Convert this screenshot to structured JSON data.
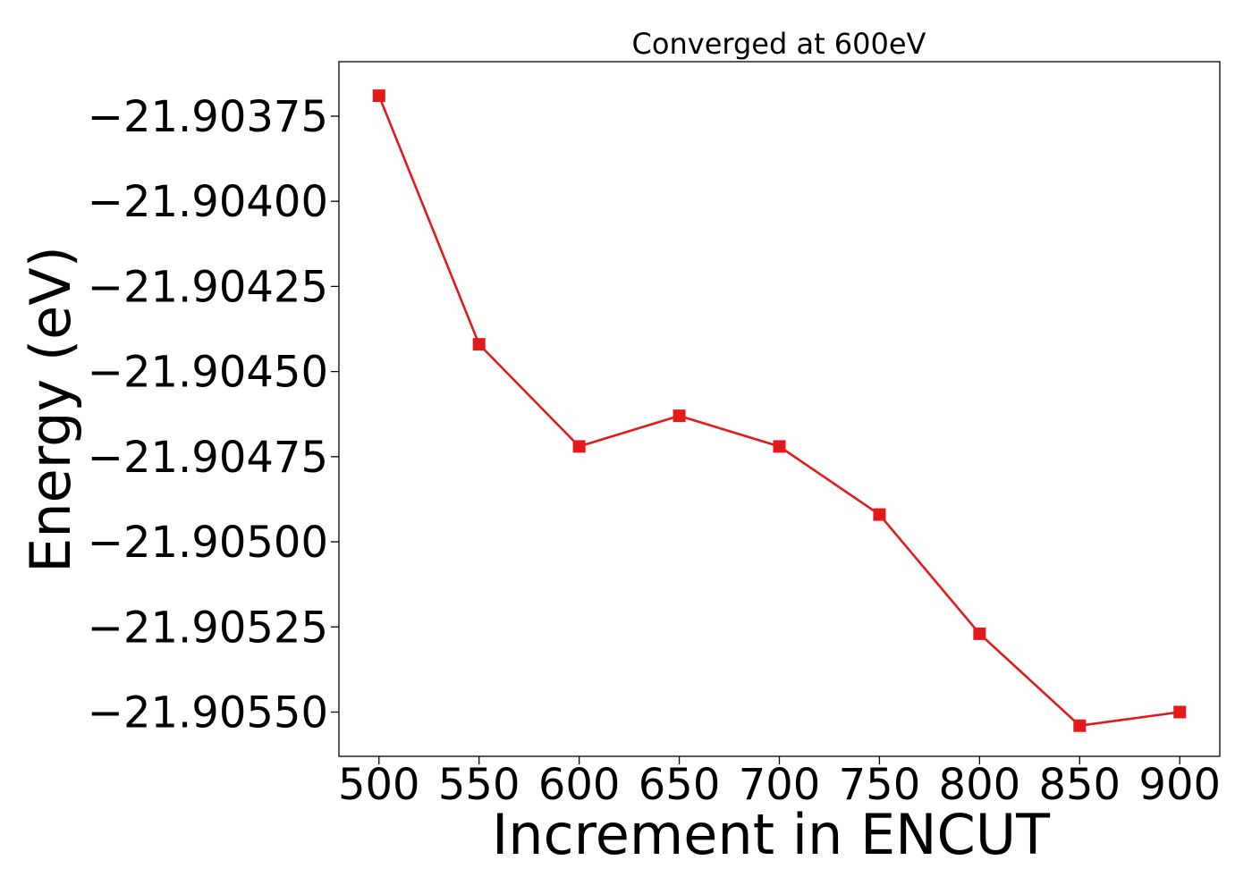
{
  "chart_data": {
    "type": "line",
    "title": "Converged at 600eV",
    "xlabel": "Increment in ENCUT",
    "ylabel": "Energy (eV)",
    "x": [
      500,
      550,
      600,
      650,
      700,
      750,
      800,
      850,
      900
    ],
    "series": [
      {
        "values": [
          -21.90369,
          -21.90442,
          -21.90472,
          -21.90463,
          -21.90472,
          -21.90492,
          -21.90527,
          -21.90554,
          -21.9055
        ],
        "color": "#e31a1c",
        "marker": "square"
      }
    ],
    "xticks": [
      500,
      550,
      600,
      650,
      700,
      750,
      800,
      850,
      900
    ],
    "xtick_labels": [
      "500",
      "550",
      "600",
      "650",
      "700",
      "750",
      "800",
      "850",
      "900"
    ],
    "yticks": [
      -21.90375,
      -21.904,
      -21.90425,
      -21.9045,
      -21.90475,
      -21.905,
      -21.90525,
      -21.9055
    ],
    "ytick_labels": [
      "−21.90375",
      "−21.90400",
      "−21.90425",
      "−21.90450",
      "−21.90475",
      "−21.90500",
      "−21.90525",
      "−21.90550"
    ],
    "xlim": [
      480,
      920
    ],
    "ylim": [
      -21.90563,
      -21.90359
    ],
    "grid": false,
    "legend": "none"
  }
}
